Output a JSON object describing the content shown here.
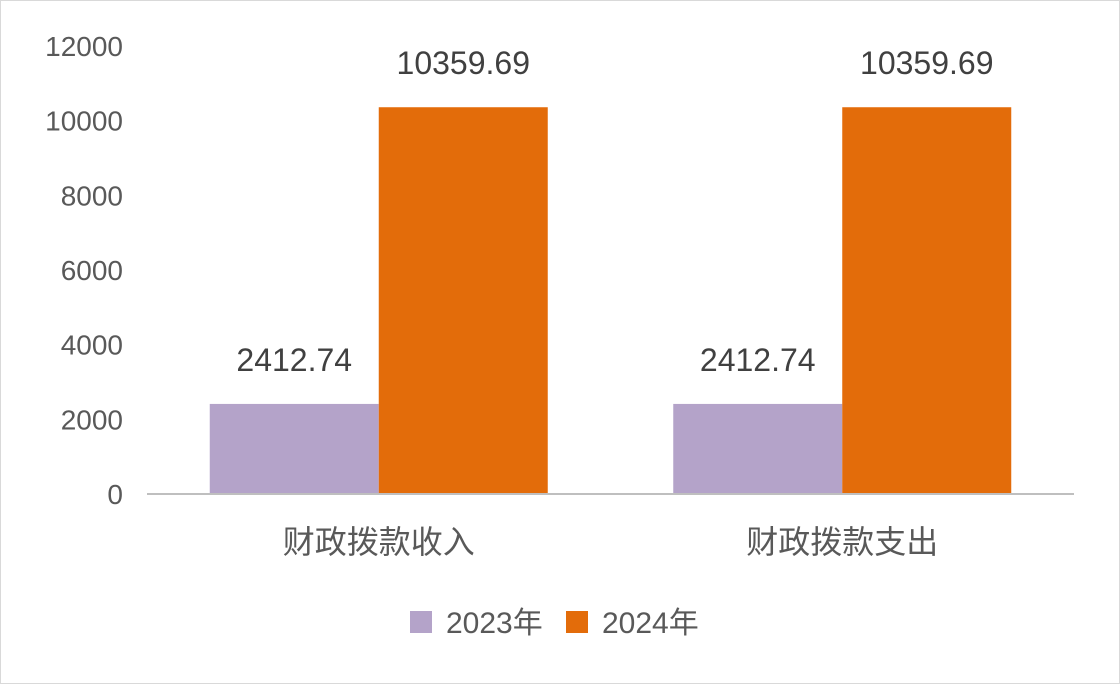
{
  "chart_data": {
    "type": "bar",
    "categories": [
      "财政拨款收入",
      "财政拨款支出"
    ],
    "series": [
      {
        "name": "2023年",
        "color": "#b4a3c9",
        "values": [
          2412.74,
          2412.74
        ],
        "labels": [
          "2412.74",
          "2412.74"
        ]
      },
      {
        "name": "2024年",
        "color": "#e36c0a",
        "values": [
          10359.69,
          10359.69
        ],
        "labels": [
          "10359.69",
          "10359.69"
        ]
      }
    ],
    "yticks": [
      "0",
      "2000",
      "4000",
      "6000",
      "8000",
      "10000",
      "12000"
    ],
    "ylim": [
      0,
      12000
    ],
    "grid": false,
    "legend_position": "bottom",
    "title": "",
    "xlabel": "",
    "ylabel": ""
  }
}
